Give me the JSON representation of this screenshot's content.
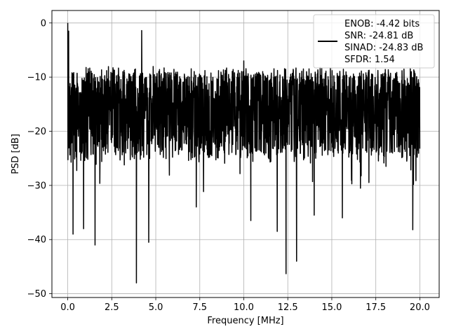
{
  "chart_data": {
    "type": "line",
    "xlabel": "Frequency [MHz]",
    "ylabel": "PSD [dB]",
    "xlim": [
      -0.9,
      21.1
    ],
    "ylim": [
      -50.7,
      2.3
    ],
    "xticks": [
      0.0,
      2.5,
      5.0,
      7.5,
      10.0,
      12.5,
      15.0,
      17.5,
      20.0
    ],
    "xtick_labels": [
      "0.0",
      "2.5",
      "5.0",
      "7.5",
      "10.0",
      "12.5",
      "15.0",
      "17.5",
      "20.0"
    ],
    "yticks": [
      0,
      -10,
      -20,
      -30,
      -40,
      -50
    ],
    "ytick_labels": [
      "0",
      "−10",
      "−20",
      "−30",
      "−40",
      "−50"
    ],
    "grid": true,
    "legend_position": "top-right",
    "legend_entries": [
      "ENOB: -4.42 bits",
      "SNR: -24.81 dB",
      "SINAD: -24.83 dB",
      "SFDR: 1.54"
    ],
    "series": [
      {
        "color": "#000000",
        "x_range": [
          0,
          20
        ],
        "points_estimated": 2000,
        "typical_band": [
          -24,
          -8
        ],
        "noise_floor_note": "dense noise, roughly flat around -16 dB",
        "peaks": [
          {
            "x": 0.0,
            "y": 0.0
          },
          {
            "x": 0.05,
            "y": -1.5
          },
          {
            "x": 4.2,
            "y": -1.4
          },
          {
            "x": 10.0,
            "y": -7.0
          }
        ],
        "dips": [
          {
            "x": 0.3,
            "y": -39.0
          },
          {
            "x": 0.9,
            "y": -38.0
          },
          {
            "x": 1.55,
            "y": -41.0
          },
          {
            "x": 3.9,
            "y": -48.0
          },
          {
            "x": 4.6,
            "y": -40.5
          },
          {
            "x": 7.3,
            "y": -34.0
          },
          {
            "x": 10.4,
            "y": -36.5
          },
          {
            "x": 11.9,
            "y": -38.5
          },
          {
            "x": 12.4,
            "y": -46.3
          },
          {
            "x": 13.0,
            "y": -44.0
          },
          {
            "x": 14.0,
            "y": -35.5
          },
          {
            "x": 15.6,
            "y": -36.0
          },
          {
            "x": 19.6,
            "y": -38.2
          }
        ]
      }
    ]
  }
}
